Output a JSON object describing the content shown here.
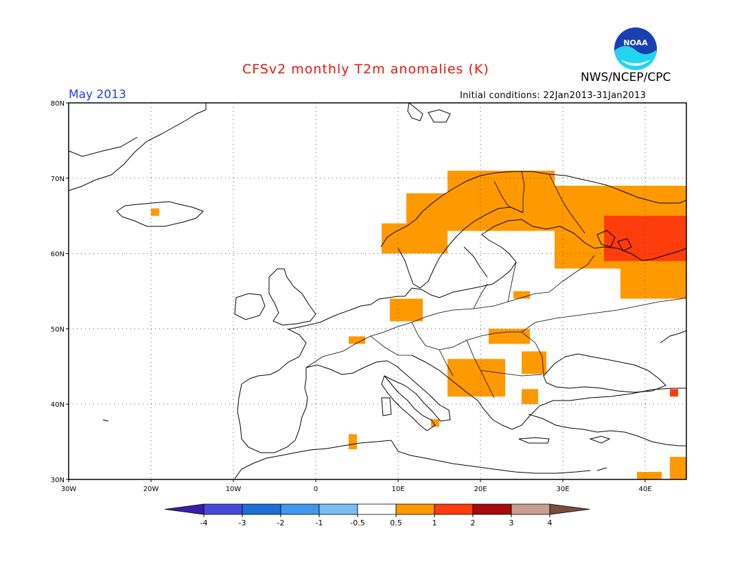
{
  "title": "CFSv2 monthly T2m anomalies (K)",
  "agency": "NWS/NCEP/CPC",
  "logo_text": "NOAA",
  "month": "May 2013",
  "initial_conditions": "Initial conditions: 22Jan2013-31Jan2013",
  "map": {
    "projection": "lat-lon",
    "lon_range": [
      -30,
      45
    ],
    "lat_range": [
      30,
      80
    ],
    "lon_ticks": [
      {
        "value": -30,
        "label": "30W"
      },
      {
        "value": -20,
        "label": "20W"
      },
      {
        "value": -10,
        "label": "10W"
      },
      {
        "value": 0,
        "label": "0"
      },
      {
        "value": 10,
        "label": "10E"
      },
      {
        "value": 20,
        "label": "20E"
      },
      {
        "value": 30,
        "label": "30E"
      },
      {
        "value": 40,
        "label": "40E"
      }
    ],
    "lat_ticks": [
      {
        "value": 30,
        "label": "30N"
      },
      {
        "value": 40,
        "label": "40N"
      },
      {
        "value": 50,
        "label": "50N"
      },
      {
        "value": 60,
        "label": "60N"
      },
      {
        "value": 70,
        "label": "70N"
      },
      {
        "value": 80,
        "label": "80N"
      }
    ],
    "grid": true,
    "anomaly_regions": [
      {
        "category": "0.5-1",
        "lon": [
          16,
          29
        ],
        "lat": [
          63,
          71
        ]
      },
      {
        "category": "0.5-1",
        "lon": [
          11,
          16
        ],
        "lat": [
          60,
          68
        ]
      },
      {
        "category": "0.5-1",
        "lon": [
          8,
          11
        ],
        "lat": [
          60,
          64
        ]
      },
      {
        "category": "0.5-1",
        "lon": [
          29,
          45
        ],
        "lat": [
          58,
          69
        ]
      },
      {
        "category": "0.5-1",
        "lon": [
          37,
          45
        ],
        "lat": [
          54,
          59
        ]
      },
      {
        "category": "1-2",
        "lon": [
          35,
          45
        ],
        "lat": [
          59,
          65
        ]
      },
      {
        "category": "0.5-1",
        "lon": [
          9,
          13
        ],
        "lat": [
          51,
          54
        ]
      },
      {
        "category": "0.5-1",
        "lon": [
          21,
          26
        ],
        "lat": [
          48,
          50
        ]
      },
      {
        "category": "0.5-1",
        "lon": [
          16,
          23
        ],
        "lat": [
          41,
          46
        ]
      },
      {
        "category": "0.5-1",
        "lon": [
          25,
          28
        ],
        "lat": [
          44,
          47
        ]
      },
      {
        "category": "0.5-1",
        "lon": [
          25,
          27
        ],
        "lat": [
          40,
          42
        ]
      },
      {
        "category": "0.5-1",
        "lon": [
          43,
          45
        ],
        "lat": [
          30,
          33
        ]
      },
      {
        "category": "0.5-1",
        "lon": [
          39,
          42
        ],
        "lat": [
          30,
          31
        ]
      },
      {
        "category": "0.5-1",
        "lon": [
          4,
          5
        ],
        "lat": [
          34,
          36
        ]
      },
      {
        "category": "0.5-1",
        "lon": [
          -20,
          -19
        ],
        "lat": [
          65,
          66
        ]
      },
      {
        "category": "0.5-1",
        "lon": [
          14,
          15
        ],
        "lat": [
          37,
          38
        ]
      },
      {
        "category": "0.5-1",
        "lon": [
          24,
          26
        ],
        "lat": [
          54,
          55
        ]
      },
      {
        "category": "0.5-1",
        "lon": [
          4,
          6
        ],
        "lat": [
          48,
          49
        ]
      },
      {
        "category": "1-2",
        "lon": [
          43,
          44
        ],
        "lat": [
          41,
          42
        ]
      }
    ]
  },
  "colorbar": {
    "levels": [
      "-4",
      "-3",
      "-2",
      "-1",
      "-0.5",
      "0.5",
      "1",
      "2",
      "3",
      "4"
    ],
    "colors": [
      "#3a1ea8",
      "#4848d8",
      "#1c6fd6",
      "#3f97ee",
      "#79bcf4",
      "#ffffff",
      "#ff9900",
      "#ff3c0c",
      "#a60a0a",
      "#c79e90",
      "#7a4d3e"
    ],
    "anomaly_color_map": {
      "0.5-1": "#ff9900",
      "1-2": "#ff3c0c"
    }
  }
}
